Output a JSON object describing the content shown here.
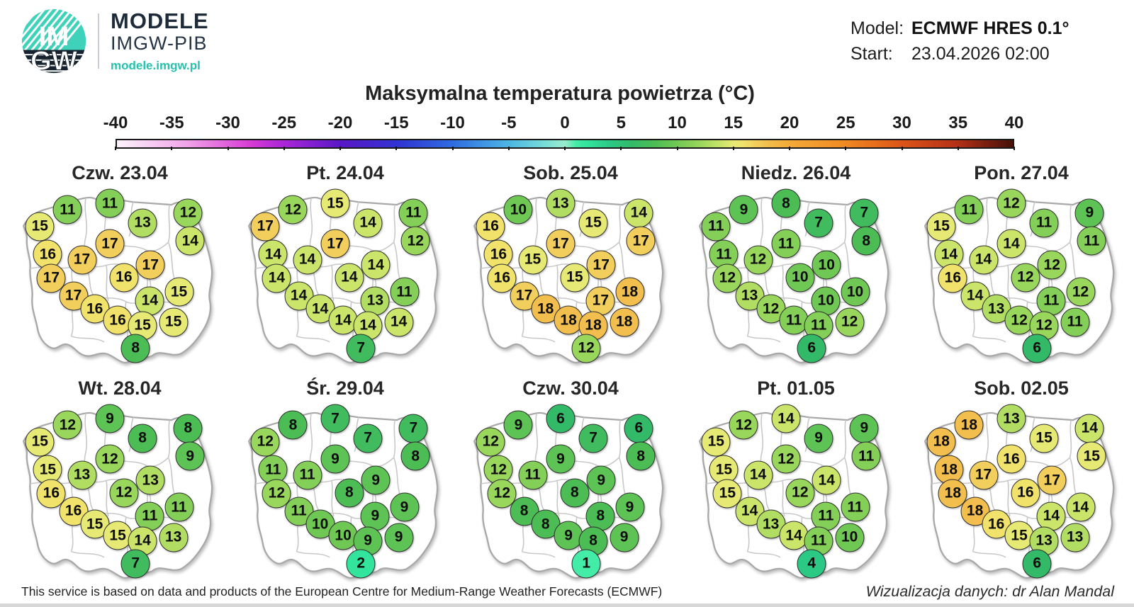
{
  "header": {
    "brand": {
      "logo_text_top": "IM",
      "logo_text_bottom": "GW",
      "name_line1": "MODELE",
      "name_line2": "IMGW-PIB",
      "website": "modele.imgw.pl"
    },
    "model_label": "Model:",
    "model_value": "ECMWF HRES 0.1°",
    "start_label": "Start:",
    "start_value": "23.04.2026 02:00"
  },
  "title": "Maksymalna temperatura powietrza (°C)",
  "chart_data": {
    "type": "heatmap",
    "subtype": "small-multiple temperature maps of Poland",
    "title": "Maksymalna temperatura powietrza (°C)",
    "colorbar": {
      "min": -40,
      "max": 40,
      "tick_step": 5,
      "ticks": [
        -40,
        -35,
        -30,
        -25,
        -20,
        -15,
        -10,
        -5,
        0,
        5,
        10,
        15,
        20,
        25,
        30,
        35,
        40
      ],
      "legend_position": "top"
    },
    "station_positions_pct": [
      [
        24.8,
        13.5
      ],
      [
        45.2,
        10.0
      ],
      [
        61.0,
        21.0
      ],
      [
        83.0,
        15.4
      ],
      [
        11.4,
        23.0
      ],
      [
        84.0,
        31.0
      ],
      [
        45.2,
        32.7
      ],
      [
        15.2,
        38.5
      ],
      [
        31.7,
        41.5
      ],
      [
        64.8,
        44.6
      ],
      [
        16.9,
        51.9
      ],
      [
        52.0,
        51.5
      ],
      [
        27.6,
        61.9
      ],
      [
        64.5,
        64.6
      ],
      [
        78.6,
        59.6
      ],
      [
        37.9,
        69.2
      ],
      [
        49.0,
        75.4
      ],
      [
        61.0,
        78.5
      ],
      [
        75.9,
        76.5
      ],
      [
        57.6,
        91.2
      ]
    ],
    "days": [
      {
        "label": "Czw. 23.04",
        "values": [
          11,
          11,
          13,
          12,
          15,
          14,
          17,
          16,
          17,
          17,
          17,
          16,
          17,
          14,
          15,
          16,
          16,
          15,
          15,
          8
        ]
      },
      {
        "label": "Pt. 24.04",
        "values": [
          12,
          15,
          14,
          11,
          17,
          12,
          17,
          14,
          14,
          14,
          14,
          14,
          14,
          13,
          11,
          14,
          14,
          14,
          14,
          7
        ]
      },
      {
        "label": "Sob. 25.04",
        "values": [
          10,
          13,
          15,
          14,
          16,
          17,
          17,
          16,
          15,
          17,
          16,
          15,
          17,
          17,
          18,
          18,
          18,
          18,
          18,
          12
        ]
      },
      {
        "label": "Niedz. 26.04",
        "values": [
          9,
          8,
          7,
          7,
          11,
          8,
          11,
          11,
          12,
          10,
          12,
          10,
          13,
          10,
          10,
          12,
          11,
          11,
          12,
          6
        ]
      },
      {
        "label": "Pon. 27.04",
        "values": [
          11,
          12,
          11,
          9,
          15,
          11,
          14,
          14,
          14,
          12,
          16,
          12,
          14,
          11,
          12,
          13,
          12,
          12,
          11,
          6
        ]
      },
      {
        "label": "Wt. 28.04",
        "values": [
          12,
          9,
          8,
          8,
          15,
          9,
          12,
          15,
          13,
          13,
          16,
          12,
          16,
          11,
          11,
          15,
          15,
          14,
          13,
          7
        ]
      },
      {
        "label": "Śr. 29.04",
        "values": [
          8,
          7,
          7,
          7,
          12,
          8,
          9,
          11,
          11,
          9,
          12,
          8,
          11,
          9,
          9,
          10,
          10,
          9,
          9,
          2
        ]
      },
      {
        "label": "Czw. 30.04",
        "values": [
          9,
          6,
          7,
          6,
          12,
          8,
          9,
          12,
          11,
          9,
          12,
          8,
          8,
          8,
          9,
          8,
          9,
          8,
          9,
          1
        ]
      },
      {
        "label": "Pt. 01.05",
        "values": [
          12,
          14,
          9,
          9,
          15,
          11,
          12,
          15,
          14,
          14,
          15,
          12,
          14,
          11,
          11,
          13,
          14,
          11,
          10,
          4
        ]
      },
      {
        "label": "Sob. 02.05",
        "values": [
          18,
          13,
          15,
          14,
          18,
          15,
          16,
          18,
          17,
          17,
          18,
          16,
          18,
          14,
          14,
          16,
          15,
          13,
          13,
          6
        ]
      }
    ]
  },
  "footer": {
    "left": "This service is based on data and products of the European Centre for Medium-Range Weather Forecasts (ECMWF)",
    "right": "Wizualizacja danych: dr Alan Mandal"
  }
}
